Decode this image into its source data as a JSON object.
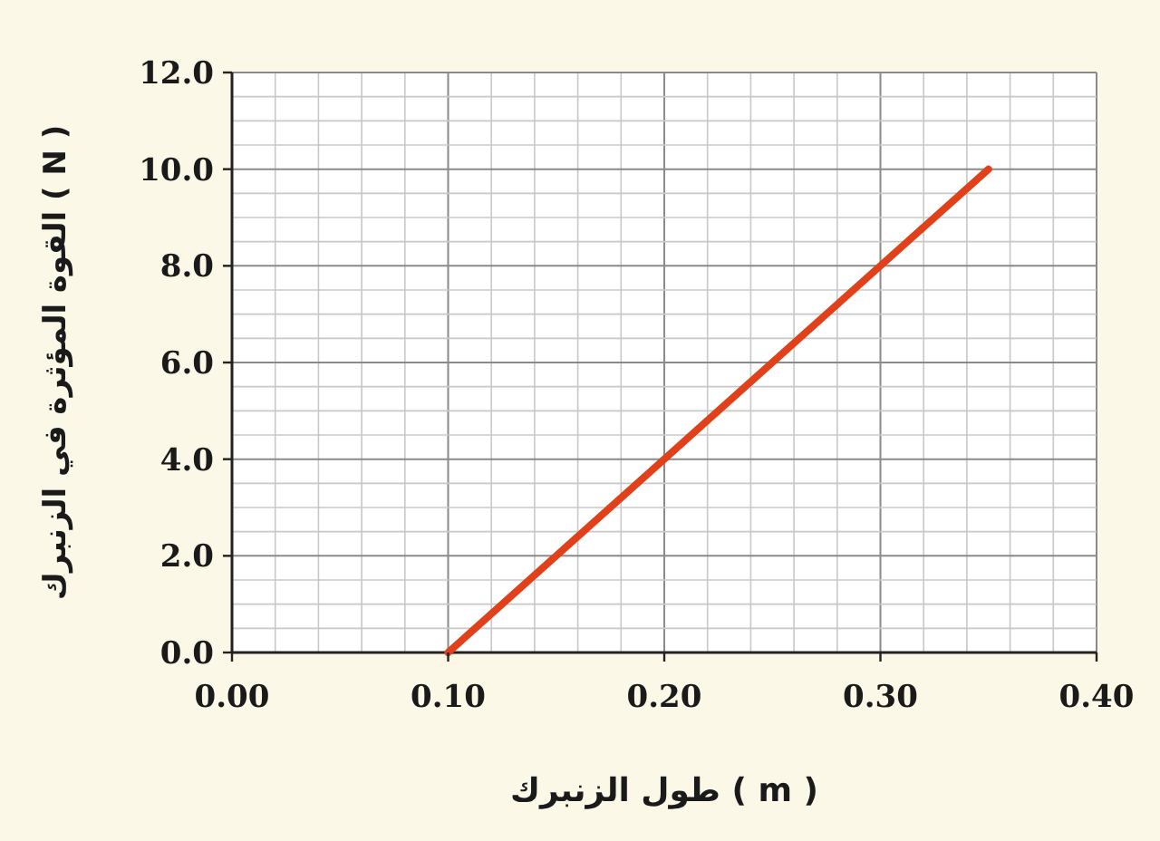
{
  "chart_data": {
    "type": "line",
    "xlabel": "طول الزنبرك ( m )",
    "ylabel": "القوة المؤثرة في الزنبرك ( N )",
    "x": [
      0.1,
      0.35
    ],
    "series": [
      {
        "color": "#e0401a",
        "values": [
          0,
          10
        ]
      }
    ],
    "xlim": [
      0,
      0.4
    ],
    "ylim": [
      0,
      12
    ],
    "xticks": [
      {
        "value": 0,
        "label": "0.00"
      },
      {
        "value": 0.1,
        "label": "0.10"
      },
      {
        "value": 0.2,
        "label": "0.20"
      },
      {
        "value": 0.3,
        "label": "0.30"
      },
      {
        "value": 0.4,
        "label": "0.40"
      }
    ],
    "yticks": [
      {
        "value": 0,
        "label": "0.0"
      },
      {
        "value": 2,
        "label": "2.0"
      },
      {
        "value": 4,
        "label": "4.0"
      },
      {
        "value": 6,
        "label": "6.0"
      },
      {
        "value": 8,
        "label": "8.0"
      },
      {
        "value": 10,
        "label": "10.0"
      },
      {
        "value": 12,
        "label": "12.0"
      }
    ],
    "grid": true,
    "marker": "none",
    "line_style": "solid"
  }
}
